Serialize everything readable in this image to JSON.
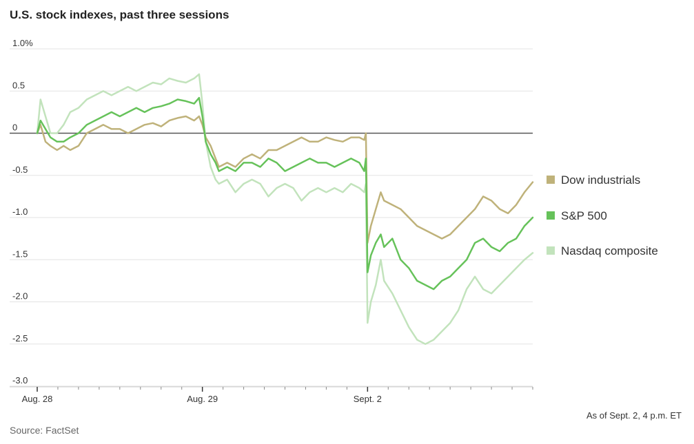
{
  "chart_title": "U.S. stock indexes, past three sessions",
  "note": "As of Sept. 2, 4 p.m. ET",
  "source": "Source: FactSet",
  "chart_data": {
    "type": "line",
    "title": "U.S. stock indexes, past three sessions",
    "xlabel": "",
    "ylabel": "",
    "ylim": [
      -3.0,
      1.0
    ],
    "grid": true,
    "legend_position": "right",
    "yticks": [
      {
        "value": 1.0,
        "label": "1.0%"
      },
      {
        "value": 0.5,
        "label": "0.5"
      },
      {
        "value": 0,
        "label": "0"
      },
      {
        "value": -0.5,
        "label": "-0.5"
      },
      {
        "value": -1.0,
        "label": "-1.0"
      },
      {
        "value": -1.5,
        "label": "-1.5"
      },
      {
        "value": -2.0,
        "label": "-2.0"
      },
      {
        "value": -2.5,
        "label": "-2.5"
      },
      {
        "value": -3.0,
        "label": "-3.0"
      }
    ],
    "xlim": [
      0,
      3
    ],
    "xticks": [
      {
        "value": 0,
        "label": "Aug. 28"
      },
      {
        "value": 1,
        "label": "Aug. 29"
      },
      {
        "value": 2,
        "label": "Sept. 2"
      }
    ],
    "series": [
      {
        "name": "Dow industrials",
        "color": "#bfb27a",
        "x": [
          0,
          0.02,
          0.05,
          0.08,
          0.12,
          0.16,
          0.2,
          0.25,
          0.3,
          0.35,
          0.4,
          0.45,
          0.5,
          0.55,
          0.6,
          0.65,
          0.7,
          0.75,
          0.8,
          0.85,
          0.9,
          0.95,
          0.98,
          1.0,
          1.02,
          1.05,
          1.08,
          1.1,
          1.15,
          1.2,
          1.25,
          1.3,
          1.35,
          1.4,
          1.45,
          1.5,
          1.55,
          1.6,
          1.65,
          1.7,
          1.75,
          1.8,
          1.85,
          1.9,
          1.95,
          1.98,
          1.99,
          2.0,
          2.02,
          2.05,
          2.08,
          2.1,
          2.15,
          2.2,
          2.25,
          2.3,
          2.35,
          2.4,
          2.45,
          2.5,
          2.55,
          2.6,
          2.65,
          2.7,
          2.75,
          2.8,
          2.85,
          2.9,
          2.95,
          3.0
        ],
        "values": [
          0.0,
          0.1,
          -0.1,
          -0.15,
          -0.2,
          -0.15,
          -0.2,
          -0.15,
          0.0,
          0.05,
          0.1,
          0.05,
          0.05,
          0.0,
          0.05,
          0.1,
          0.12,
          0.08,
          0.15,
          0.18,
          0.2,
          0.15,
          0.2,
          0.1,
          -0.05,
          -0.15,
          -0.3,
          -0.4,
          -0.35,
          -0.4,
          -0.3,
          -0.25,
          -0.3,
          -0.2,
          -0.2,
          -0.15,
          -0.1,
          -0.05,
          -0.1,
          -0.1,
          -0.05,
          -0.08,
          -0.1,
          -0.05,
          -0.05,
          -0.08,
          0.0,
          -1.3,
          -1.1,
          -0.9,
          -0.7,
          -0.8,
          -0.85,
          -0.9,
          -1.0,
          -1.1,
          -1.15,
          -1.2,
          -1.25,
          -1.2,
          -1.1,
          -1.0,
          -0.9,
          -0.75,
          -0.8,
          -0.9,
          -0.95,
          -0.85,
          -0.7,
          -0.58
        ]
      },
      {
        "name": "S&P 500",
        "color": "#66c25a",
        "x": [
          0,
          0.02,
          0.05,
          0.08,
          0.12,
          0.16,
          0.2,
          0.25,
          0.3,
          0.35,
          0.4,
          0.45,
          0.5,
          0.55,
          0.6,
          0.65,
          0.7,
          0.75,
          0.8,
          0.85,
          0.9,
          0.95,
          0.98,
          1.0,
          1.02,
          1.05,
          1.08,
          1.1,
          1.15,
          1.2,
          1.25,
          1.3,
          1.35,
          1.4,
          1.45,
          1.5,
          1.55,
          1.6,
          1.65,
          1.7,
          1.75,
          1.8,
          1.85,
          1.9,
          1.95,
          1.98,
          1.99,
          2.0,
          2.02,
          2.05,
          2.08,
          2.1,
          2.15,
          2.2,
          2.25,
          2.3,
          2.35,
          2.4,
          2.45,
          2.5,
          2.55,
          2.6,
          2.65,
          2.7,
          2.75,
          2.8,
          2.85,
          2.9,
          2.95,
          3.0
        ],
        "values": [
          0.0,
          0.15,
          0.05,
          -0.05,
          -0.1,
          -0.1,
          -0.05,
          0.0,
          0.1,
          0.15,
          0.2,
          0.25,
          0.2,
          0.25,
          0.3,
          0.25,
          0.3,
          0.32,
          0.35,
          0.4,
          0.38,
          0.35,
          0.42,
          0.2,
          -0.1,
          -0.25,
          -0.35,
          -0.45,
          -0.4,
          -0.45,
          -0.35,
          -0.35,
          -0.4,
          -0.3,
          -0.35,
          -0.45,
          -0.4,
          -0.35,
          -0.3,
          -0.35,
          -0.35,
          -0.4,
          -0.35,
          -0.3,
          -0.35,
          -0.45,
          -0.3,
          -1.65,
          -1.45,
          -1.3,
          -1.2,
          -1.35,
          -1.25,
          -1.5,
          -1.6,
          -1.75,
          -1.8,
          -1.85,
          -1.75,
          -1.7,
          -1.6,
          -1.5,
          -1.3,
          -1.25,
          -1.35,
          -1.4,
          -1.3,
          -1.25,
          -1.1,
          -1.0
        ]
      },
      {
        "name": "Nasdaq composite",
        "color": "#c2e3bc",
        "x": [
          0,
          0.02,
          0.05,
          0.08,
          0.12,
          0.16,
          0.2,
          0.25,
          0.3,
          0.35,
          0.4,
          0.45,
          0.5,
          0.55,
          0.6,
          0.65,
          0.7,
          0.75,
          0.8,
          0.85,
          0.9,
          0.95,
          0.98,
          1.0,
          1.02,
          1.05,
          1.08,
          1.1,
          1.15,
          1.2,
          1.25,
          1.3,
          1.35,
          1.4,
          1.45,
          1.5,
          1.55,
          1.6,
          1.65,
          1.7,
          1.75,
          1.8,
          1.85,
          1.9,
          1.95,
          1.98,
          1.99,
          2.0,
          2.02,
          2.05,
          2.08,
          2.1,
          2.15,
          2.2,
          2.25,
          2.3,
          2.35,
          2.4,
          2.45,
          2.5,
          2.55,
          2.6,
          2.65,
          2.7,
          2.75,
          2.8,
          2.85,
          2.9,
          2.95,
          3.0
        ],
        "values": [
          0.0,
          0.4,
          0.2,
          0.0,
          0.0,
          0.1,
          0.25,
          0.3,
          0.4,
          0.45,
          0.5,
          0.45,
          0.5,
          0.55,
          0.5,
          0.55,
          0.6,
          0.58,
          0.65,
          0.62,
          0.6,
          0.65,
          0.7,
          0.35,
          -0.1,
          -0.4,
          -0.55,
          -0.6,
          -0.55,
          -0.7,
          -0.6,
          -0.55,
          -0.6,
          -0.75,
          -0.65,
          -0.6,
          -0.65,
          -0.8,
          -0.7,
          -0.65,
          -0.7,
          -0.65,
          -0.7,
          -0.6,
          -0.65,
          -0.7,
          -0.6,
          -2.25,
          -2.0,
          -1.8,
          -1.5,
          -1.75,
          -1.9,
          -2.1,
          -2.3,
          -2.45,
          -2.5,
          -2.45,
          -2.35,
          -2.25,
          -2.1,
          -1.85,
          -1.7,
          -1.85,
          -1.9,
          -1.8,
          -1.7,
          -1.6,
          -1.5,
          -1.42
        ]
      }
    ]
  }
}
